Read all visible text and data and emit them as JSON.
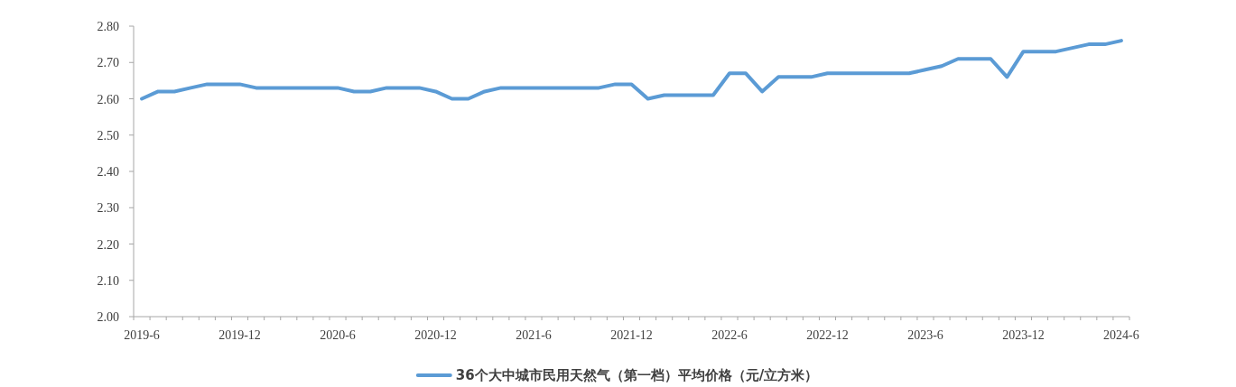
{
  "chart_data": {
    "type": "line",
    "legend": "bottom",
    "categories": [
      "2019-6",
      null,
      null,
      null,
      null,
      null,
      "2019-12",
      null,
      null,
      null,
      null,
      null,
      "2020-6",
      null,
      null,
      null,
      null,
      null,
      "2020-12",
      null,
      null,
      null,
      null,
      null,
      "2021-6",
      null,
      null,
      null,
      null,
      null,
      "2021-12",
      null,
      null,
      null,
      null,
      null,
      "2022-6",
      null,
      null,
      null,
      null,
      null,
      "2022-12",
      null,
      null,
      null,
      null,
      null,
      "2023-6",
      null,
      null,
      null,
      null,
      null,
      "2023-12",
      null,
      null,
      null,
      null,
      null,
      "2024-6"
    ],
    "ylim": [
      2.0,
      2.8
    ],
    "yticks": [
      {
        "value": 2.0,
        "label": "2.00"
      },
      {
        "value": 2.1,
        "label": "2.10"
      },
      {
        "value": 2.2,
        "label": "2.20"
      },
      {
        "value": 2.3,
        "label": "2.30"
      },
      {
        "value": 2.4,
        "label": "2.40"
      },
      {
        "value": 2.5,
        "label": "2.50"
      },
      {
        "value": 2.6,
        "label": "2.60"
      },
      {
        "value": 2.7,
        "label": "2.70"
      },
      {
        "value": 2.8,
        "label": "2.80"
      }
    ],
    "series": [
      {
        "name": "36个大中城市民用天然气（第一档）平均价格（元/立方米）",
        "color": "#5b9bd5",
        "values": [
          2.6,
          2.62,
          2.62,
          2.63,
          2.64,
          2.64,
          2.64,
          2.63,
          2.63,
          2.63,
          2.63,
          2.63,
          2.63,
          2.62,
          2.62,
          2.63,
          2.63,
          2.63,
          2.62,
          2.6,
          2.6,
          2.62,
          2.63,
          2.63,
          2.63,
          2.63,
          2.63,
          2.63,
          2.63,
          2.64,
          2.64,
          2.6,
          2.61,
          2.61,
          2.61,
          2.61,
          2.67,
          2.67,
          2.62,
          2.66,
          2.66,
          2.66,
          2.67,
          2.67,
          2.67,
          2.67,
          2.67,
          2.67,
          2.68,
          2.69,
          2.71,
          2.71,
          2.71,
          2.66,
          2.73,
          2.73,
          2.73,
          2.74,
          2.75,
          2.75,
          2.76
        ]
      }
    ]
  }
}
